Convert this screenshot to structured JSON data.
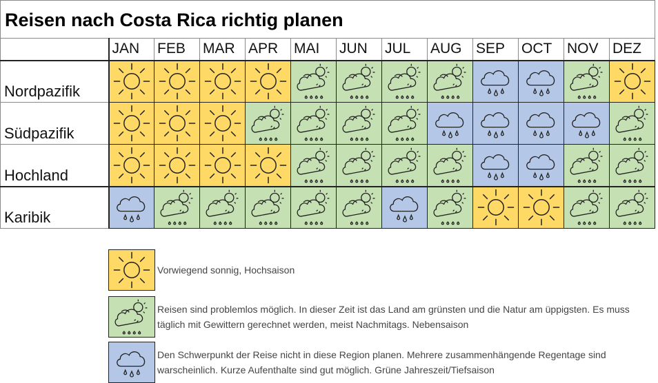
{
  "title": "Reisen nach Costa Rica richtig planen",
  "months": [
    "JAN",
    "FEB",
    "MAR",
    "APR",
    "MAI",
    "JUN",
    "JUL",
    "AUG",
    "SEP",
    "OCT",
    "NOV",
    "DEZ"
  ],
  "regions": [
    {
      "name": "Nordpazifik",
      "weather": [
        "S",
        "S",
        "S",
        "S",
        "G",
        "G",
        "G",
        "G",
        "B",
        "B",
        "G",
        "S"
      ]
    },
    {
      "name": "Südpazifik",
      "weather": [
        "S",
        "S",
        "S",
        "G",
        "G",
        "G",
        "G",
        "B",
        "B",
        "B",
        "B",
        "G"
      ]
    },
    {
      "name": "Hochland",
      "weather": [
        "S",
        "S",
        "S",
        "S",
        "G",
        "G",
        "G",
        "G",
        "B",
        "B",
        "G",
        "G"
      ]
    },
    {
      "name": "Karibik",
      "weather": [
        "B",
        "G",
        "G",
        "G",
        "G",
        "G",
        "B",
        "G",
        "S",
        "S",
        "G",
        "G"
      ]
    }
  ],
  "legend": [
    {
      "type": "S",
      "icon": "sun-icon",
      "text": "Vorwiegend sonnig, Hochsaison"
    },
    {
      "type": "G",
      "icon": "cloud-sun-rain-icon",
      "text": "Reisen sind problemlos möglich. In dieser Zeit ist das Land am grünsten und die Natur am üppigsten. Es muss täglich mit Gewittern gerechnet werden, meist Nachmitags. Nebensaison"
    },
    {
      "type": "B",
      "icon": "rain-cloud-icon",
      "text": "Den Schwerpunkt der Reise nicht in diese Region planen. Mehrere zusammenhängende Regentage sind warscheinlich. Kurze Aufenthalte sind gut möglich. Grüne Jahreszeit/Tiefsaison"
    }
  ],
  "colors": {
    "S": "#FFD966",
    "G": "#C5E0B3",
    "B": "#B4C7E7"
  }
}
